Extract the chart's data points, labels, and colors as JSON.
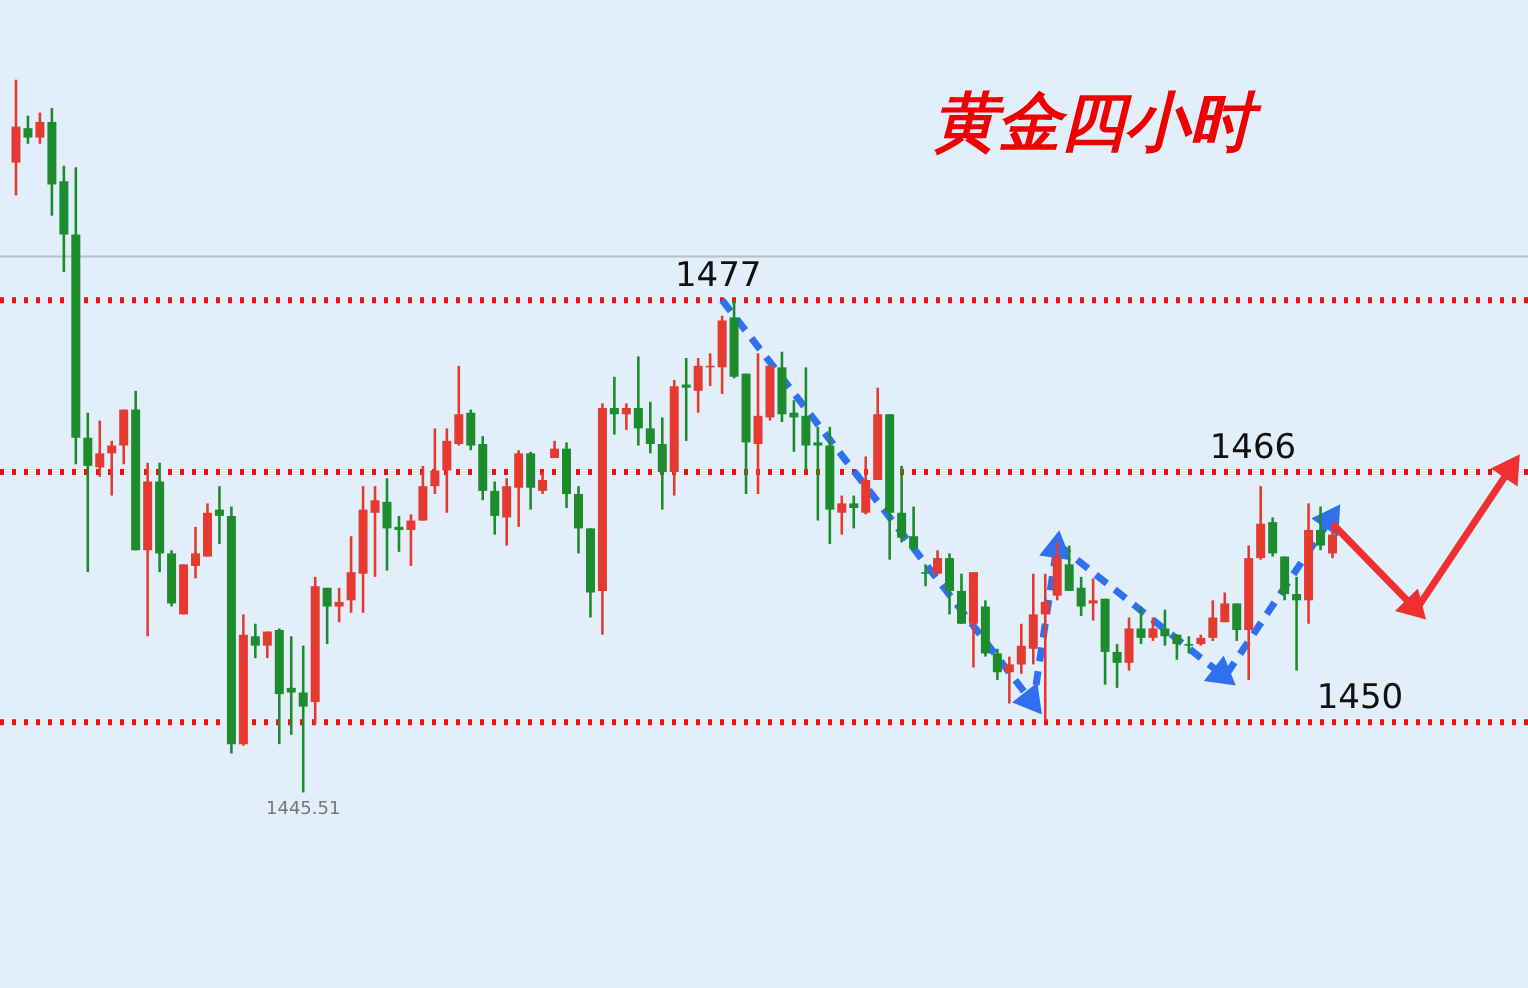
{
  "chart_data": {
    "type": "candlestick",
    "title": "黄金四小时",
    "categories": [
      null,
      null,
      null,
      null,
      null,
      null,
      null,
      null,
      null,
      null,
      null,
      null,
      null,
      null,
      null,
      null,
      null,
      null,
      null,
      null,
      null,
      null,
      null,
      null,
      null,
      null,
      null,
      null,
      null,
      null,
      null,
      null,
      null,
      null,
      null,
      null,
      null,
      null,
      null,
      null,
      null,
      null,
      null,
      null,
      null,
      null,
      null,
      null,
      null,
      null,
      null,
      null,
      null,
      null,
      null,
      null,
      null,
      null,
      null,
      null,
      null,
      null,
      null,
      null,
      null,
      null,
      null,
      null,
      null,
      null,
      null,
      null,
      null,
      null,
      null,
      null,
      null,
      null,
      null,
      null,
      null,
      null,
      null,
      null,
      null,
      null,
      null,
      null,
      null,
      null,
      null,
      null,
      null,
      null,
      null,
      null,
      null,
      null,
      null,
      null,
      null,
      null,
      null,
      null,
      null,
      null,
      null,
      null,
      null,
      null,
      null,
      null,
      null,
      null,
      null,
      null,
      null,
      null,
      null,
      null,
      null,
      null,
      null,
      null,
      null,
      null
    ],
    "ohlc": [
      [
        1485.8,
        1491.1,
        1483.7,
        1488.1
      ],
      [
        1488.0,
        1488.8,
        1487.0,
        1487.4
      ],
      [
        1487.4,
        1489.0,
        1487.0,
        1488.4
      ],
      [
        1488.4,
        1489.3,
        1482.4,
        1484.4
      ],
      [
        1484.6,
        1485.6,
        1478.8,
        1481.2
      ],
      [
        1481.2,
        1485.5,
        1466.5,
        1468.2
      ],
      [
        1468.2,
        1469.8,
        1459.6,
        1466.4
      ],
      [
        1466.3,
        1469.3,
        1465.7,
        1467.2
      ],
      [
        1467.2,
        1468.0,
        1464.5,
        1467.7
      ],
      [
        1467.7,
        1470.0,
        1466.5,
        1470.0
      ],
      [
        1470.0,
        1471.2,
        1461.0,
        1461.0
      ],
      [
        1461.0,
        1466.6,
        1455.5,
        1465.4
      ],
      [
        1465.4,
        1466.6,
        1459.6,
        1460.8
      ],
      [
        1460.8,
        1461.0,
        1457.4,
        1457.6
      ],
      [
        1456.9,
        1460.1,
        1456.9,
        1460.1
      ],
      [
        1460.0,
        1462.5,
        1459.2,
        1460.8
      ],
      [
        1460.6,
        1464.0,
        1460.6,
        1463.4
      ],
      [
        1463.6,
        1465.1,
        1461.4,
        1463.2
      ],
      [
        1463.2,
        1463.8,
        1448.0,
        1448.6
      ],
      [
        1448.6,
        1456.9,
        1448.5,
        1455.6
      ],
      [
        1455.5,
        1456.3,
        1454.1,
        1454.9
      ],
      [
        1454.9,
        1455.8,
        1454.1,
        1455.8
      ],
      [
        1455.9,
        1456.0,
        1448.6,
        1451.8
      ],
      [
        1452.2,
        1455.5,
        1449.2,
        1451.9
      ],
      [
        1451.9,
        1454.9,
        1445.51,
        1451.0
      ],
      [
        1451.3,
        1459.3,
        1449.9,
        1458.7
      ],
      [
        1458.6,
        1458.6,
        1455.0,
        1457.4
      ],
      [
        1457.4,
        1458.6,
        1456.4,
        1457.7
      ],
      [
        1457.8,
        1461.9,
        1457.0,
        1459.6
      ],
      [
        1459.5,
        1465.1,
        1457.0,
        1463.6
      ],
      [
        1463.4,
        1465.1,
        1459.3,
        1464.2
      ],
      [
        1464.1,
        1465.6,
        1459.7,
        1462.4
      ],
      [
        1462.5,
        1463.2,
        1460.9,
        1462.3
      ],
      [
        1462.3,
        1463.3,
        1460.0,
        1462.9
      ],
      [
        1462.9,
        1466.4,
        1462.9,
        1465.1
      ],
      [
        1465.1,
        1468.8,
        1464.6,
        1466.1
      ],
      [
        1466.1,
        1468.8,
        1463.4,
        1468.0
      ],
      [
        1467.8,
        1472.8,
        1467.7,
        1469.7
      ],
      [
        1469.8,
        1470.0,
        1467.4,
        1467.7
      ],
      [
        1467.8,
        1468.3,
        1464.2,
        1464.8
      ],
      [
        1464.8,
        1465.4,
        1462.0,
        1463.2
      ],
      [
        1463.1,
        1465.6,
        1461.3,
        1465.1
      ],
      [
        1465.0,
        1467.4,
        1462.5,
        1467.2
      ],
      [
        1467.2,
        1467.3,
        1463.6,
        1465.0
      ],
      [
        1464.8,
        1466.0,
        1464.6,
        1465.5
      ],
      [
        1466.9,
        1468.0,
        1466.9,
        1467.5
      ],
      [
        1467.5,
        1467.9,
        1463.7,
        1464.6
      ],
      [
        1464.6,
        1465.1,
        1460.8,
        1462.4
      ],
      [
        1462.4,
        1462.4,
        1456.7,
        1458.3
      ],
      [
        1458.4,
        1470.4,
        1455.6,
        1470.1
      ],
      [
        1470.1,
        1472.1,
        1468.4,
        1469.7
      ],
      [
        1469.7,
        1470.4,
        1468.7,
        1470.1
      ],
      [
        1470.1,
        1473.4,
        1467.7,
        1468.8
      ],
      [
        1468.8,
        1470.5,
        1467.2,
        1467.8
      ],
      [
        1467.8,
        1469.5,
        1463.6,
        1466.0
      ],
      [
        1466.0,
        1471.9,
        1464.5,
        1471.5
      ],
      [
        1471.6,
        1473.3,
        1468.0,
        1471.4
      ],
      [
        1471.2,
        1473.3,
        1469.8,
        1472.8
      ],
      [
        1472.7,
        1473.6,
        1471.5,
        1472.8
      ],
      [
        1472.7,
        1476.0,
        1471.0,
        1475.7
      ],
      [
        1475.9,
        1477.0,
        1472.0,
        1472.1
      ],
      [
        1472.3,
        1472.3,
        1464.6,
        1467.9
      ],
      [
        1467.8,
        1473.6,
        1464.6,
        1469.6
      ],
      [
        1469.5,
        1472.8,
        1469.3,
        1472.8
      ],
      [
        1472.7,
        1473.7,
        1469.2,
        1469.7
      ],
      [
        1469.8,
        1470.6,
        1467.3,
        1469.5
      ],
      [
        1469.6,
        1472.7,
        1466.1,
        1467.7
      ],
      [
        1467.9,
        1468.9,
        1462.9,
        1467.7
      ],
      [
        1467.7,
        1468.9,
        1461.4,
        1463.6
      ],
      [
        1463.4,
        1464.5,
        1462.0,
        1464.0
      ],
      [
        1464.0,
        1464.5,
        1462.4,
        1463.7
      ],
      [
        1463.4,
        1467.0,
        1463.3,
        1465.5
      ],
      [
        1465.5,
        1471.4,
        1465.5,
        1469.7
      ],
      [
        1469.7,
        1469.7,
        1460.4,
        1463.4
      ],
      [
        1463.4,
        1466.4,
        1461.5,
        1461.8
      ],
      [
        1461.9,
        1463.8,
        1461.0,
        1461.1
      ],
      [
        1459.6,
        1460.1,
        1458.7,
        1459.5
      ],
      [
        1459.5,
        1461.0,
        1459.5,
        1460.5
      ],
      [
        1460.5,
        1460.8,
        1456.9,
        1458.4
      ],
      [
        1458.4,
        1459.5,
        1456.3,
        1456.3
      ],
      [
        1456.3,
        1459.6,
        1453.5,
        1459.6
      ],
      [
        1457.4,
        1457.8,
        1454.2,
        1454.4
      ],
      [
        1454.4,
        1454.7,
        1452.7,
        1453.2
      ],
      [
        1453.2,
        1454.2,
        1451.2,
        1453.7
      ],
      [
        1453.7,
        1456.3,
        1453.1,
        1454.9
      ],
      [
        1454.7,
        1459.5,
        1453.7,
        1456.9
      ],
      [
        1456.9,
        1459.5,
        1450.1,
        1457.7
      ],
      [
        1458.1,
        1461.5,
        1457.8,
        1460.6
      ],
      [
        1460.1,
        1461.3,
        1458.4,
        1458.4
      ],
      [
        1458.6,
        1459.3,
        1456.8,
        1457.4
      ],
      [
        1457.6,
        1459.2,
        1456.5,
        1457.8
      ],
      [
        1457.9,
        1457.9,
        1452.4,
        1454.5
      ],
      [
        1454.5,
        1455.0,
        1452.2,
        1453.8
      ],
      [
        1453.8,
        1456.7,
        1453.3,
        1456.0
      ],
      [
        1456.0,
        1457.4,
        1455.0,
        1455.4
      ],
      [
        1455.4,
        1456.7,
        1455.2,
        1456.0
      ],
      [
        1456.0,
        1457.2,
        1454.9,
        1455.5
      ],
      [
        1455.6,
        1455.6,
        1454.0,
        1455.0
      ],
      [
        1455.0,
        1455.5,
        1454.4,
        1454.9
      ],
      [
        1455.0,
        1455.6,
        1454.9,
        1455.4
      ],
      [
        1455.4,
        1457.8,
        1455.2,
        1456.7
      ],
      [
        1456.4,
        1458.3,
        1456.4,
        1457.6
      ],
      [
        1457.6,
        1457.6,
        1455.2,
        1455.9
      ],
      [
        1455.9,
        1461.3,
        1452.7,
        1460.5
      ],
      [
        1460.5,
        1465.1,
        1460.4,
        1462.7
      ],
      [
        1462.8,
        1463.1,
        1460.6,
        1460.8
      ],
      [
        1460.6,
        1460.6,
        1457.8,
        1458.2
      ],
      [
        1458.2,
        1459.3,
        1453.3,
        1457.8
      ],
      [
        1457.8,
        1464.0,
        1456.3,
        1462.3
      ],
      [
        1462.3,
        1463.8,
        1461.0,
        1461.3
      ],
      [
        1460.8,
        1462.5,
        1460.5,
        1462.0
      ],
      null,
      null,
      null,
      null,
      null,
      null,
      null,
      null,
      null,
      null,
      null,
      null,
      null,
      null,
      null
    ],
    "colors": [
      "#e53a30",
      "#1c8c2c",
      "#e53a30",
      "#1c8c2c",
      "#1c8c2c",
      "#1c8c2c",
      "#1c8c2c",
      "#e53a30",
      "#e53a30",
      "#e53a30",
      "#1c8c2c",
      "#e53a30",
      "#1c8c2c",
      "#1c8c2c",
      "#e53a30",
      "#e53a30",
      "#e53a30",
      "#1c8c2c",
      "#1c8c2c",
      "#e53a30",
      "#1c8c2c",
      "#e53a30",
      "#1c8c2c",
      "#1c8c2c",
      "#1c8c2c",
      "#e53a30",
      "#1c8c2c",
      "#e53a30",
      "#e53a30",
      "#e53a30",
      "#e53a30",
      "#1c8c2c",
      "#1c8c2c",
      "#e53a30",
      "#e53a30",
      "#e53a30",
      "#e53a30",
      "#e53a30",
      "#1c8c2c",
      "#1c8c2c",
      "#1c8c2c",
      "#e53a30",
      "#e53a30",
      "#1c8c2c",
      "#e53a30",
      "#e53a30",
      "#1c8c2c",
      "#1c8c2c",
      "#1c8c2c",
      "#e53a30",
      "#1c8c2c",
      "#e53a30",
      "#1c8c2c",
      "#1c8c2c",
      "#1c8c2c",
      "#e53a30",
      "#1c8c2c",
      "#e53a30",
      "#e53a30",
      "#e53a30",
      "#1c8c2c",
      "#1c8c2c",
      "#e53a30",
      "#e53a30",
      "#1c8c2c",
      "#1c8c2c",
      "#1c8c2c",
      "#1c8c2c",
      "#1c8c2c",
      "#e53a30",
      "#1c8c2c",
      "#e53a30",
      "#e53a30",
      "#1c8c2c",
      "#1c8c2c",
      "#1c8c2c",
      "#1c8c2c",
      "#e53a30",
      "#1c8c2c",
      "#1c8c2c",
      "#e53a30",
      "#1c8c2c",
      "#1c8c2c",
      "#e53a30",
      "#e53a30",
      "#e53a30",
      "#e53a30",
      "#e53a30",
      "#1c8c2c",
      "#1c8c2c",
      "#e53a30",
      "#1c8c2c",
      "#1c8c2c",
      "#e53a30",
      "#1c8c2c",
      "#e53a30",
      "#1c8c2c",
      "#1c8c2c",
      "#1c8c2c",
      "#e53a30",
      "#e53a30",
      "#e53a30",
      "#1c8c2c",
      "#e53a30",
      "#e53a30",
      "#1c8c2c",
      "#1c8c2c",
      "#1c8c2c",
      "#e53a30",
      "#1c8c2c",
      "#e53a30",
      null,
      null,
      null,
      null,
      null,
      null,
      null,
      null,
      null,
      null,
      null,
      null,
      null,
      null,
      null
    ],
    "series": [
      {
        "type": "line",
        "color": "#3070f0",
        "line_style": "dashed",
        "marker": "triangle",
        "values": [
          null,
          null,
          null,
          null,
          null,
          null,
          null,
          null,
          null,
          null,
          null,
          null,
          null,
          null,
          null,
          null,
          null,
          null,
          null,
          null,
          null,
          null,
          null,
          null,
          null,
          null,
          null,
          null,
          null,
          null,
          null,
          null,
          null,
          null,
          null,
          null,
          null,
          null,
          null,
          null,
          null,
          null,
          null,
          null,
          null,
          null,
          null,
          null,
          null,
          null,
          null,
          null,
          null,
          null,
          null,
          null,
          null,
          null,
          null,
          1477.0,
          null,
          null,
          null,
          null,
          null,
          null,
          null,
          null,
          null,
          null,
          null,
          null,
          null,
          null,
          null,
          null,
          null,
          null,
          null,
          null,
          null,
          null,
          null,
          null,
          null,
          1451.2,
          null,
          1461.4,
          null,
          null,
          null,
          null,
          null,
          null,
          null,
          null,
          null,
          null,
          null,
          null,
          null,
          1452.9,
          null,
          null,
          null,
          null,
          null,
          null,
          null,
          null,
          1463.2,
          null,
          null,
          null,
          null,
          null,
          null,
          null,
          null,
          null,
          null,
          null,
          null,
          null,
          null,
          null
        ]
      },
      {
        "type": "line",
        "color": "#f03030",
        "line_style": "solid",
        "marker": "triangle",
        "values": [
          null,
          null,
          null,
          null,
          null,
          null,
          null,
          null,
          null,
          null,
          null,
          null,
          null,
          null,
          null,
          null,
          null,
          null,
          null,
          null,
          null,
          null,
          null,
          null,
          null,
          null,
          null,
          null,
          null,
          null,
          null,
          null,
          null,
          null,
          null,
          null,
          null,
          null,
          null,
          null,
          null,
          null,
          null,
          null,
          null,
          null,
          null,
          null,
          null,
          null,
          null,
          null,
          null,
          null,
          null,
          null,
          null,
          null,
          null,
          null,
          null,
          null,
          null,
          null,
          null,
          null,
          null,
          null,
          null,
          null,
          null,
          null,
          null,
          null,
          null,
          null,
          null,
          null,
          null,
          null,
          null,
          null,
          null,
          null,
          null,
          null,
          null,
          null,
          null,
          null,
          null,
          null,
          null,
          null,
          null,
          null,
          null,
          null,
          null,
          null,
          null,
          null,
          null,
          null,
          null,
          null,
          null,
          null,
          null,
          null,
          1462.7,
          null,
          null,
          null,
          null,
          null,
          null,
          1457.2,
          null,
          null,
          null,
          null,
          null,
          null,
          null,
          1466.4
        ]
      }
    ],
    "ref_lines": [
      {
        "axis": "y",
        "value": 1479.8,
        "label": null,
        "color": "#b8c0c8",
        "line_style": "solid"
      },
      {
        "axis": "y",
        "value": 1477,
        "label": "1477",
        "color": "#f01010",
        "line_style": "dotted"
      },
      {
        "axis": "y",
        "value": 1466,
        "label": "1466",
        "color": "#f01010",
        "line_style": "dotted"
      },
      {
        "axis": "y",
        "value": 1450,
        "label": "1450",
        "color": "#f01010",
        "line_style": "dotted"
      }
    ],
    "annotations": [
      {
        "text": "1445.51",
        "y": 1445.51
      }
    ],
    "ylim": [
      1433.0,
      1496.2
    ],
    "tick_labels": false
  }
}
